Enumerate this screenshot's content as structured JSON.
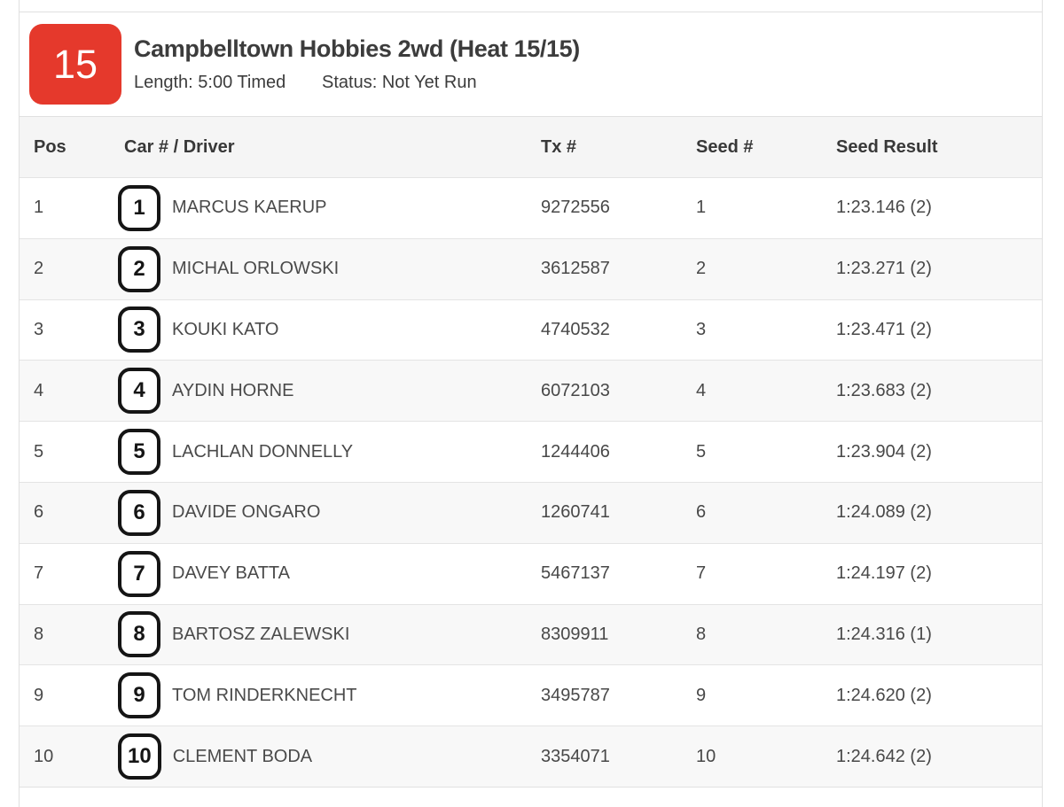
{
  "heat": {
    "badge_number": "15",
    "title": "Campbelltown Hobbies 2wd (Heat 15/15)",
    "length": "Length: 5:00 Timed",
    "status": "Status: Not Yet Run"
  },
  "colors": {
    "badge_red": "#e5392c",
    "panel_border": "#e0e0e0",
    "header_row_bg": "#f5f5f5",
    "stripe_row_bg": "#f8f8f8",
    "text": "#3c3c3c"
  },
  "table": {
    "columns": [
      {
        "key": "pos",
        "label": "Pos"
      },
      {
        "key": "car_driver",
        "label": "Car # / Driver"
      },
      {
        "key": "tx",
        "label": "Tx #"
      },
      {
        "key": "seed",
        "label": "Seed #"
      },
      {
        "key": "result",
        "label": "Seed Result"
      }
    ],
    "rows": [
      {
        "pos": "1",
        "car": "1",
        "driver": "MARCUS KAERUP",
        "tx": "9272556",
        "seed": "1",
        "result": "1:23.146 (2)"
      },
      {
        "pos": "2",
        "car": "2",
        "driver": "MICHAL ORLOWSKI",
        "tx": "3612587",
        "seed": "2",
        "result": "1:23.271 (2)"
      },
      {
        "pos": "3",
        "car": "3",
        "driver": "KOUKI KATO",
        "tx": "4740532",
        "seed": "3",
        "result": "1:23.471 (2)"
      },
      {
        "pos": "4",
        "car": "4",
        "driver": "AYDIN HORNE",
        "tx": "6072103",
        "seed": "4",
        "result": "1:23.683 (2)"
      },
      {
        "pos": "5",
        "car": "5",
        "driver": "LACHLAN DONNELLY",
        "tx": "1244406",
        "seed": "5",
        "result": "1:23.904 (2)"
      },
      {
        "pos": "6",
        "car": "6",
        "driver": "DAVIDE ONGARO",
        "tx": "1260741",
        "seed": "6",
        "result": "1:24.089 (2)"
      },
      {
        "pos": "7",
        "car": "7",
        "driver": "DAVEY BATTA",
        "tx": "5467137",
        "seed": "7",
        "result": "1:24.197 (2)"
      },
      {
        "pos": "8",
        "car": "8",
        "driver": "BARTOSZ ZALEWSKI",
        "tx": "8309911",
        "seed": "8",
        "result": "1:24.316 (1)"
      },
      {
        "pos": "9",
        "car": "9",
        "driver": "TOM RINDERKNECHT",
        "tx": "3495787",
        "seed": "9",
        "result": "1:24.620 (2)"
      },
      {
        "pos": "10",
        "car": "10",
        "driver": "CLEMENT BODA",
        "tx": "3354071",
        "seed": "10",
        "result": "1:24.642 (2)"
      }
    ]
  }
}
